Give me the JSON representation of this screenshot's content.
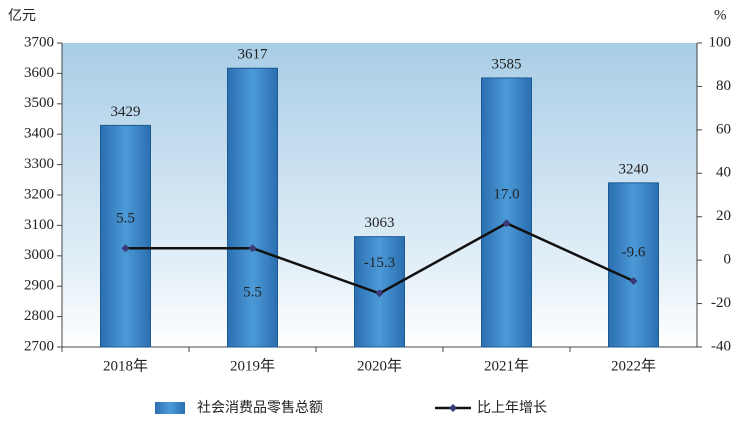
{
  "chart_data": {
    "type": "bar",
    "y_unit": "亿元",
    "y2_unit": "%",
    "categories": [
      "2018年",
      "2019年",
      "2020年",
      "2021年",
      "2022年"
    ],
    "series": [
      {
        "name": "社会消费品零售总额",
        "type": "bar",
        "color": "#3a86c8",
        "values": [
          3429,
          3617,
          3063,
          3585,
          3240
        ]
      },
      {
        "name": "比上年增长",
        "type": "line",
        "axis": "y2",
        "color": "#111111",
        "marker_color": "#3a3a7a",
        "values": [
          5.5,
          5.5,
          -15.3,
          17.0,
          -9.6
        ],
        "value_labels": [
          "5.5",
          "5.5",
          "-15.3",
          "17.0",
          "-9.6"
        ]
      }
    ],
    "ylim": [
      2700,
      3700
    ],
    "yticks": [
      2700,
      2800,
      2900,
      3000,
      3100,
      3200,
      3300,
      3400,
      3500,
      3600,
      3700
    ],
    "y2lim": [
      -40,
      100
    ],
    "y2ticks": [
      -40,
      -20,
      0,
      20,
      40,
      60,
      80,
      100
    ]
  }
}
